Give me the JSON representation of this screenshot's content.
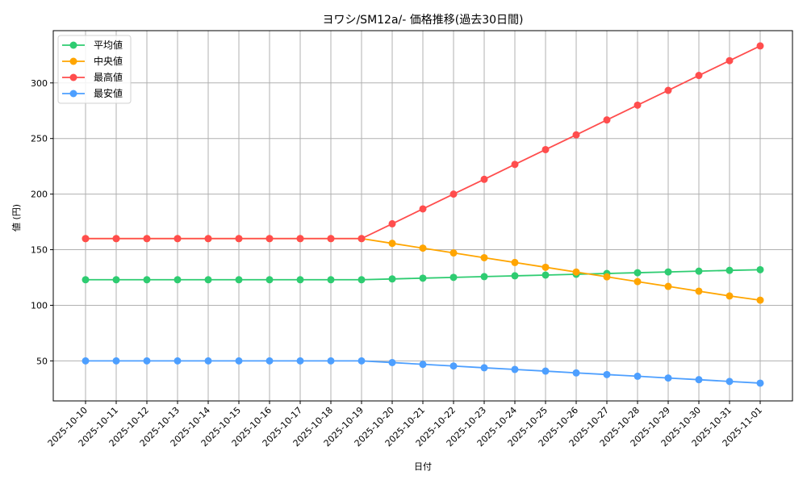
{
  "chart_data": {
    "type": "line",
    "title": "ヨワシ/SM12a/- 価格推移(過去30日間)",
    "xlabel": "日付",
    "ylabel": "値 (円)",
    "ylim": [
      14,
      347
    ],
    "yticks": [
      50,
      100,
      150,
      200,
      250,
      300
    ],
    "grid": true,
    "legend_position": "upper left",
    "categories": [
      "2025-10-10",
      "2025-10-11",
      "2025-10-12",
      "2025-10-13",
      "2025-10-14",
      "2025-10-15",
      "2025-10-16",
      "2025-10-17",
      "2025-10-18",
      "2025-10-19",
      "2025-10-20",
      "2025-10-21",
      "2025-10-22",
      "2025-10-23",
      "2025-10-24",
      "2025-10-25",
      "2025-10-26",
      "2025-10-27",
      "2025-10-28",
      "2025-10-29",
      "2025-10-30",
      "2025-10-31",
      "2025-11-01"
    ],
    "series": [
      {
        "name": "平均値",
        "color": "#2ecc71",
        "values": [
          123,
          123,
          123,
          123,
          123,
          123,
          123,
          123,
          123,
          123,
          123.7,
          124.4,
          125.1,
          125.8,
          126.5,
          127.2,
          127.9,
          128.6,
          129.3,
          130,
          130.7,
          131.4,
          132
        ]
      },
      {
        "name": "中央値",
        "color": "#ffa500",
        "values": [
          160,
          160,
          160,
          160,
          160,
          160,
          160,
          160,
          160,
          160,
          155.7,
          151.4,
          147.1,
          142.8,
          138.5,
          134.2,
          129.9,
          125.6,
          121.3,
          117,
          112.7,
          108.4,
          104.6
        ]
      },
      {
        "name": "最高値",
        "color": "#ff4d4d",
        "values": [
          160,
          160,
          160,
          160,
          160,
          160,
          160,
          160,
          160,
          160,
          173.3,
          186.7,
          200,
          213.3,
          226.7,
          240,
          253.3,
          266.7,
          280,
          293.3,
          306.7,
          320,
          333.3
        ]
      },
      {
        "name": "最安値",
        "color": "#4d9fff",
        "values": [
          50,
          50,
          50,
          50,
          50,
          50,
          50,
          50,
          50,
          50,
          48.5,
          46.9,
          45.4,
          43.8,
          42.3,
          40.8,
          39.2,
          37.7,
          36.2,
          34.6,
          33.1,
          31.5,
          30
        ]
      }
    ]
  }
}
